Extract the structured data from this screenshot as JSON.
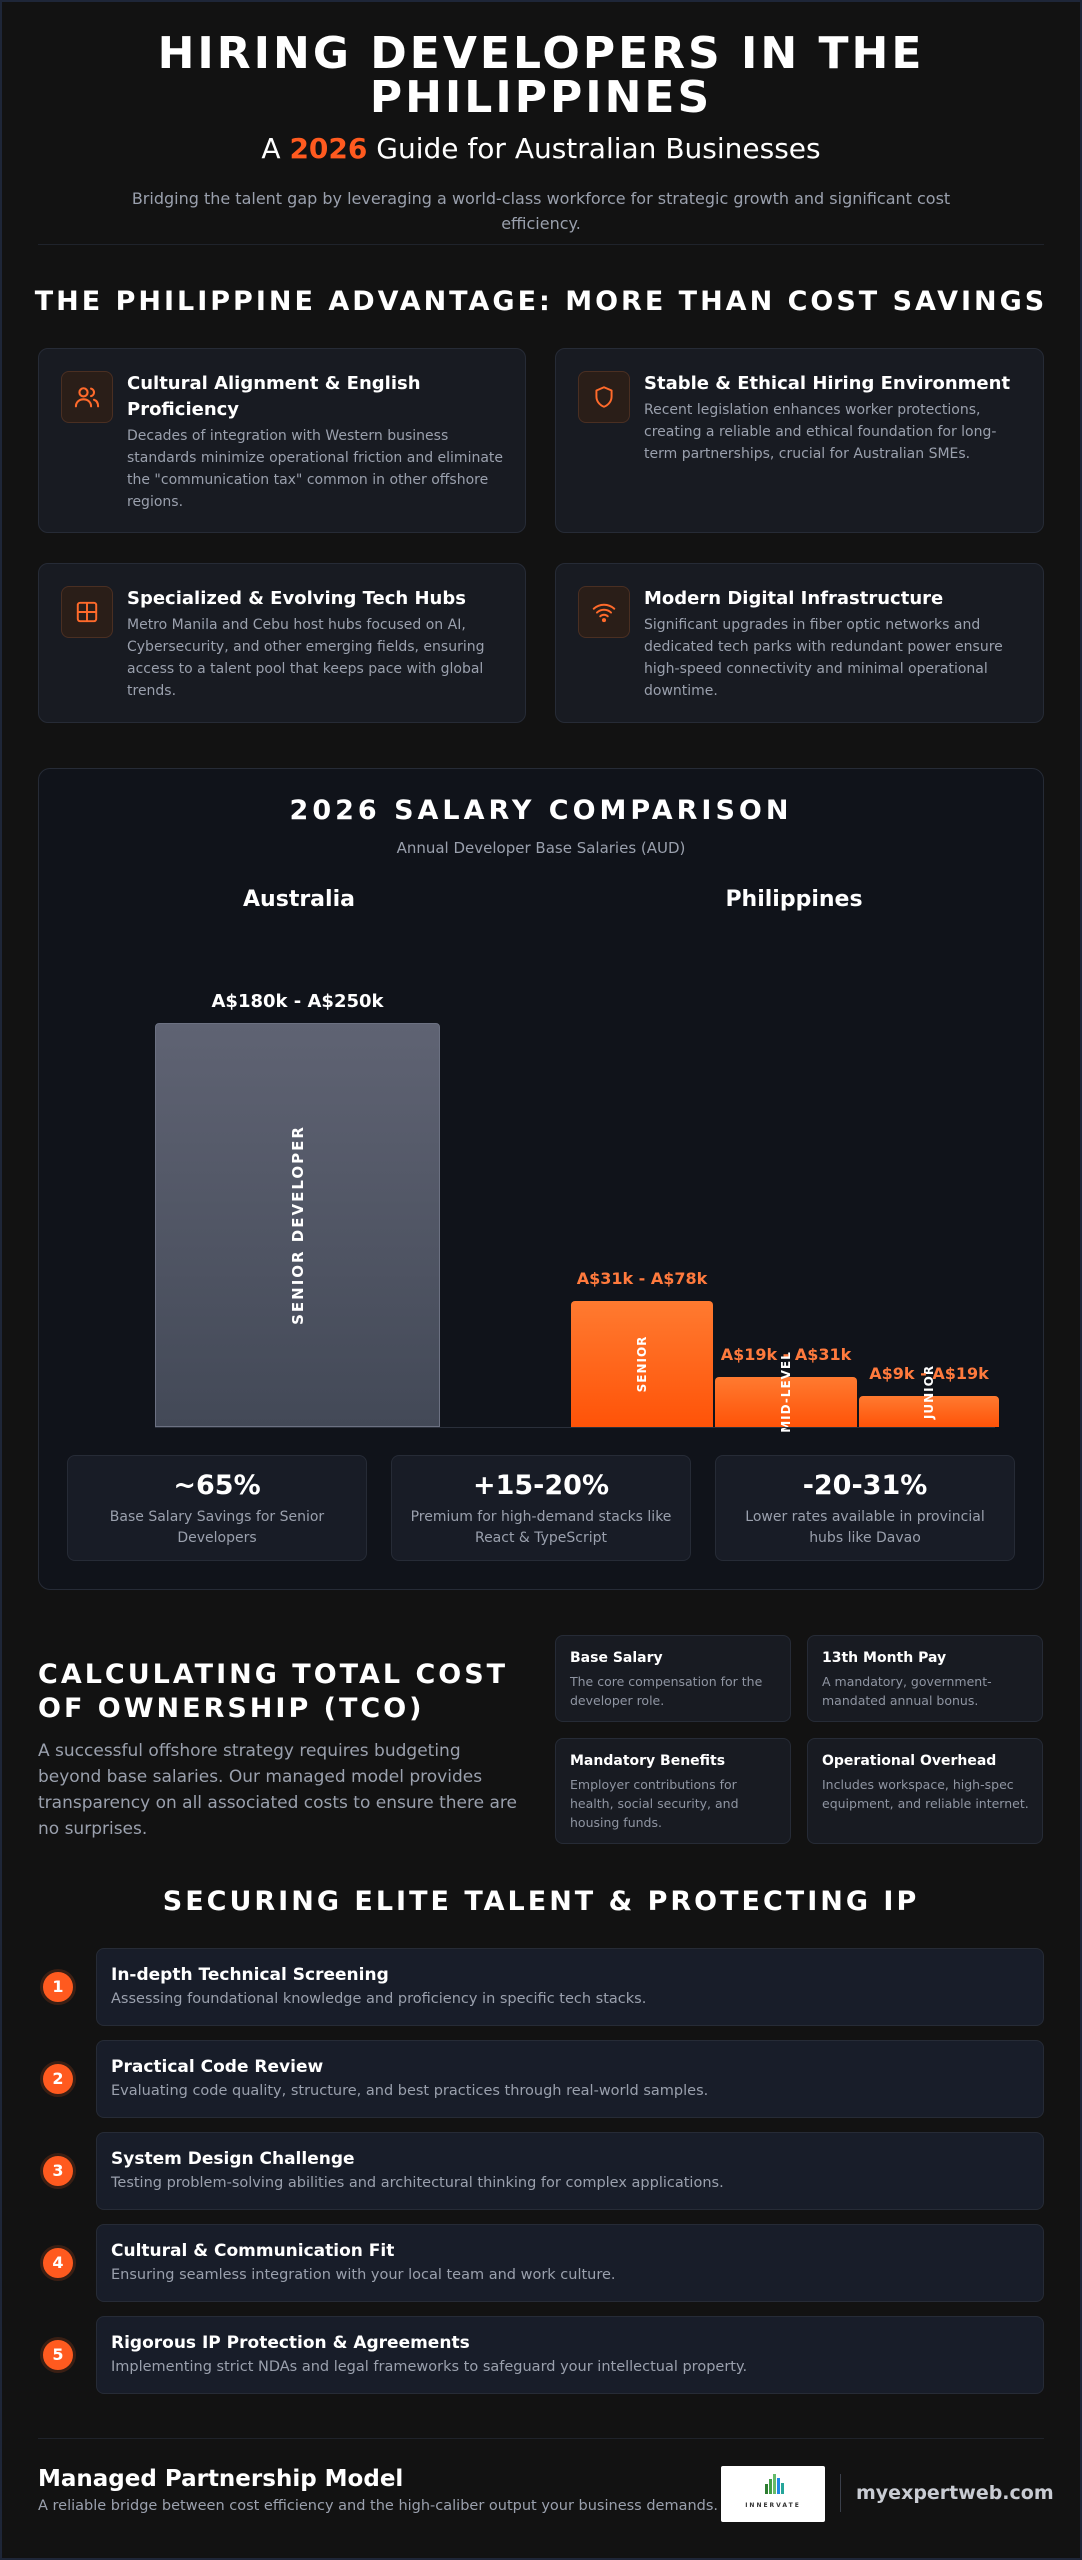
{
  "header": {
    "title": "HIRING DEVELOPERS IN THE PHILIPPINES",
    "subtitle_prefix": "A",
    "subtitle_year": "2026",
    "subtitle_suffix": "Guide for Australian Businesses",
    "lead": "Bridging the talent gap by leveraging a world-class workforce for strategic growth and significant cost efficiency."
  },
  "advantage": {
    "title": "THE PHILIPPINE ADVANTAGE: MORE THAN COST SAVINGS",
    "cards": [
      {
        "icon": "users-icon",
        "title": "Cultural Alignment & English Proficiency",
        "body": "Decades of integration with Western business standards minimize operational friction and eliminate the \"communication tax\" common in other offshore regions."
      },
      {
        "icon": "shield-icon",
        "title": "Stable & Ethical Hiring Environment",
        "body": "Recent legislation enhances worker protections, creating a reliable and ethical foundation for long-term partnerships, crucial for Australian SMEs."
      },
      {
        "icon": "grid-icon",
        "title": "Specialized & Evolving Tech Hubs",
        "body": "Metro Manila and Cebu host hubs focused on AI, Cybersecurity, and other emerging fields, ensuring access to a talent pool that keeps pace with global trends."
      },
      {
        "icon": "wifi-icon",
        "title": "Modern Digital Infrastructure",
        "body": "Significant upgrades in fiber optic networks and dedicated tech parks with redundant power ensure high-speed connectivity and minimal operational downtime."
      }
    ]
  },
  "chart_data": {
    "type": "bar",
    "title": "2026 SALARY COMPARISON",
    "subtitle": "Annual Developer Base Salaries (AUD)",
    "groups": [
      "Australia",
      "Philippines"
    ],
    "unit": "A$k",
    "bars": [
      {
        "group": "Australia",
        "label": "SENIOR DEVELOPER",
        "range_label": "A$180k - A$250k",
        "min": 180,
        "max": 250
      },
      {
        "group": "Philippines",
        "label": "SENIOR",
        "range_label": "A$31k - A$78k",
        "min": 31,
        "max": 78
      },
      {
        "group": "Philippines",
        "label": "MID-LEVEL",
        "range_label": "A$19k - A$31k",
        "min": 19,
        "max": 31
      },
      {
        "group": "Philippines",
        "label": "JUNIOR",
        "range_label": "A$9k - A$19k",
        "min": 9,
        "max": 19
      }
    ],
    "colors": {
      "australia": "#5a5f6e",
      "philippines": "#ff6414",
      "accent_text": "#ff7a3d"
    }
  },
  "stats": [
    {
      "value": "~65%",
      "desc": "Base Salary Savings for Senior Developers"
    },
    {
      "value": "+15-20%",
      "desc": "Premium for high-demand stacks like React & TypeScript"
    },
    {
      "value": "-20-31%",
      "desc": "Lower rates available in provincial hubs like Davao"
    }
  ],
  "tco": {
    "title": "CALCULATING TOTAL COST OF OWNERSHIP (TCO)",
    "body": "A successful offshore strategy requires budgeting beyond base salaries. Our managed model provides transparency on all associated costs to ensure there are no surprises.",
    "items": [
      {
        "title": "Base Salary",
        "desc": "The core compensation for the developer role."
      },
      {
        "title": "13th Month Pay",
        "desc": "A mandatory, government-mandated annual bonus."
      },
      {
        "title": "Mandatory Benefits",
        "desc": "Employer contributions for health, social security, and housing funds."
      },
      {
        "title": "Operational Overhead",
        "desc": "Includes workspace, high-spec equipment, and reliable internet."
      }
    ]
  },
  "talent": {
    "title": "SECURING ELITE TALENT & PROTECTING IP",
    "steps": [
      {
        "num": "1",
        "title": "In-depth Technical Screening",
        "desc": "Assessing foundational knowledge and proficiency in specific tech stacks."
      },
      {
        "num": "2",
        "title": "Practical Code Review",
        "desc": "Evaluating code quality, structure, and best practices through real-world samples."
      },
      {
        "num": "3",
        "title": "System Design Challenge",
        "desc": "Testing problem-solving abilities and architectural thinking for complex applications."
      },
      {
        "num": "4",
        "title": "Cultural & Communication Fit",
        "desc": "Ensuring seamless integration with your local team and work culture."
      },
      {
        "num": "5",
        "title": "Rigorous IP Protection & Agreements",
        "desc": "Implementing strict NDAs and legal frameworks to safeguard your intellectual property."
      }
    ]
  },
  "footer": {
    "title": "Managed Partnership Model",
    "subtitle": "A reliable bridge between cost efficiency and the high-caliber output your business demands.",
    "logo_text": "INNERVATE",
    "site": "myexpertweb.com"
  },
  "accent_color": "#ff5a1f"
}
